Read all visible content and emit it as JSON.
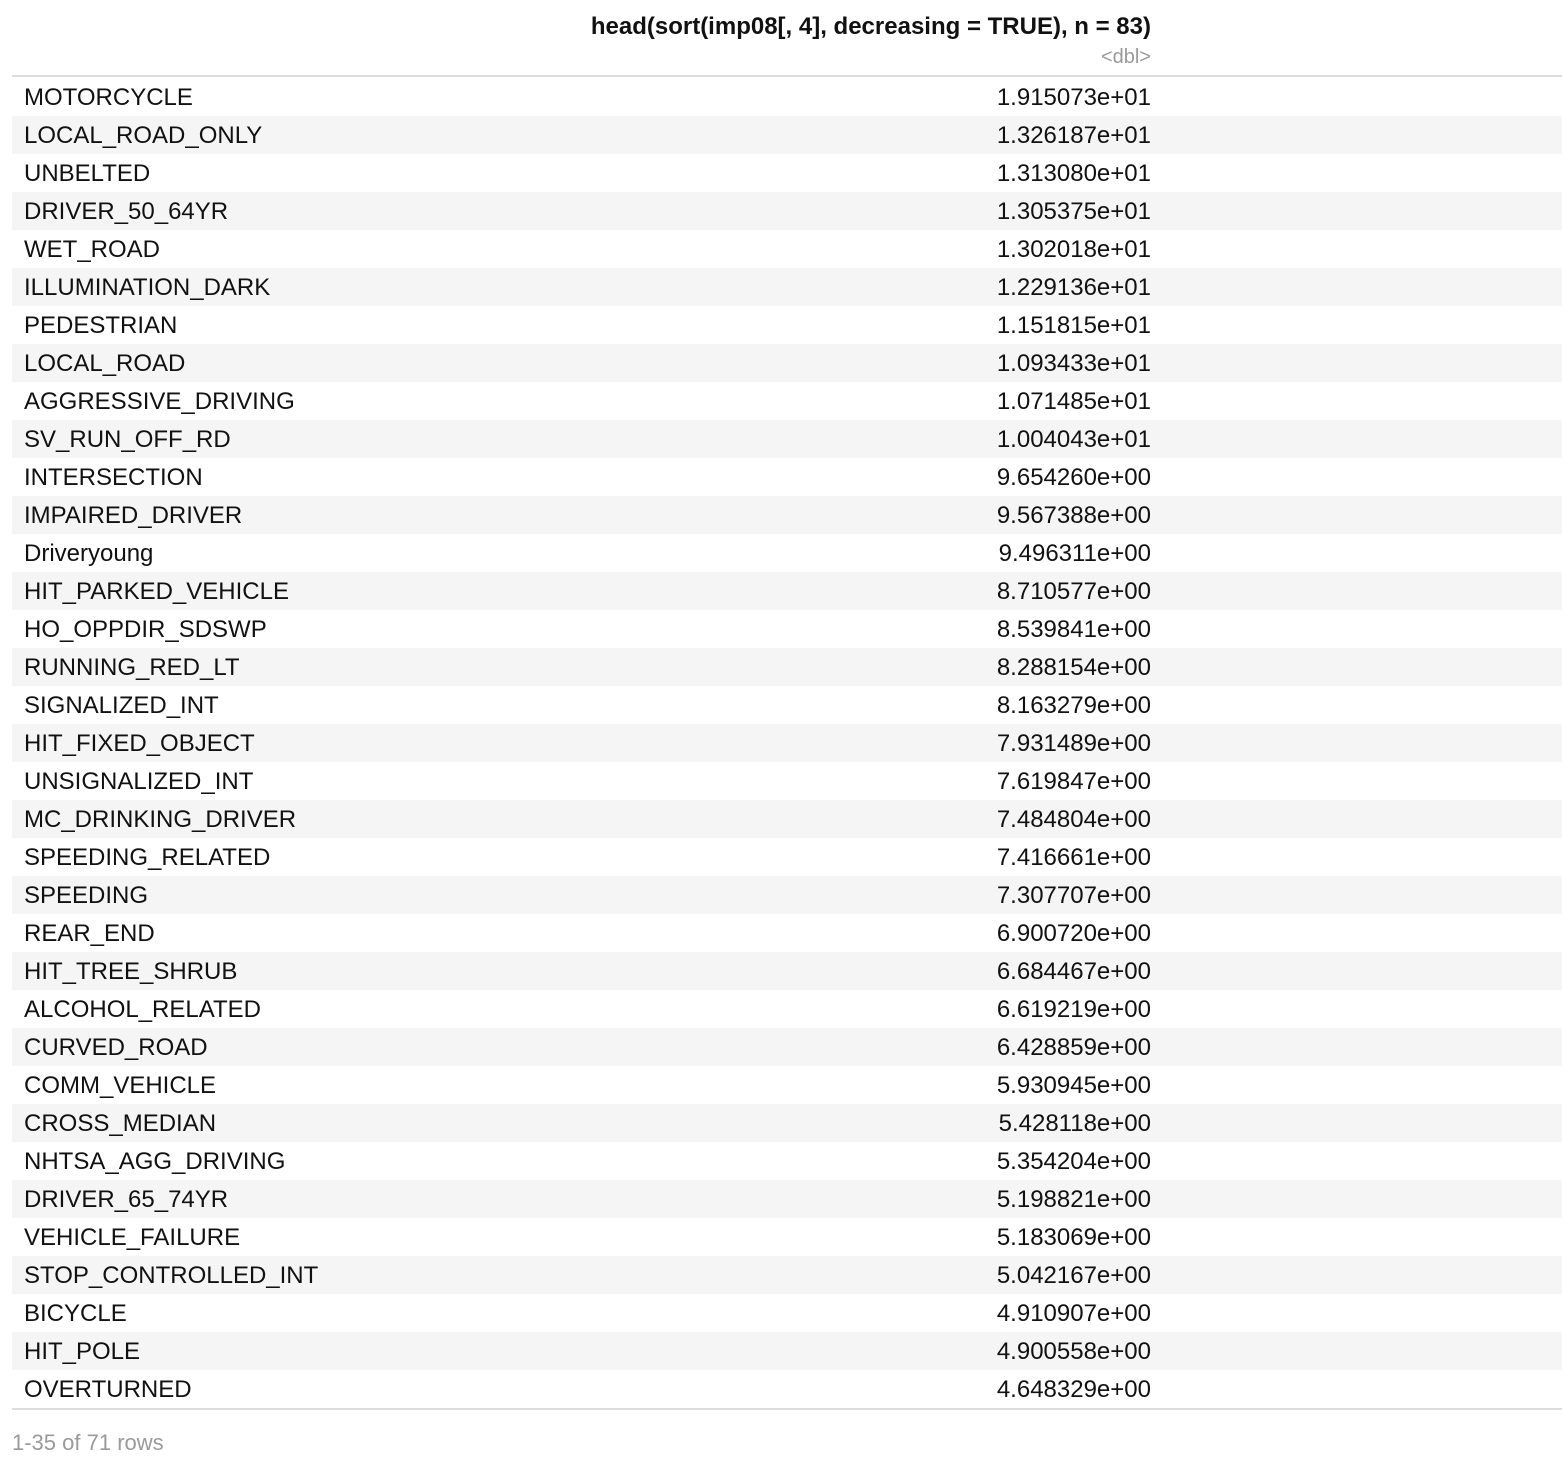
{
  "table": {
    "column_title": "head(sort(imp08[, 4], decreasing = TRUE), n = 83)",
    "column_type": "<dbl>",
    "rows": [
      {
        "name": "MOTORCYCLE",
        "value": "1.915073e+01"
      },
      {
        "name": "LOCAL_ROAD_ONLY",
        "value": "1.326187e+01"
      },
      {
        "name": "UNBELTED",
        "value": "1.313080e+01"
      },
      {
        "name": "DRIVER_50_64YR",
        "value": "1.305375e+01"
      },
      {
        "name": "WET_ROAD",
        "value": "1.302018e+01"
      },
      {
        "name": "ILLUMINATION_DARK",
        "value": "1.229136e+01"
      },
      {
        "name": "PEDESTRIAN",
        "value": "1.151815e+01"
      },
      {
        "name": "LOCAL_ROAD",
        "value": "1.093433e+01"
      },
      {
        "name": "AGGRESSIVE_DRIVING",
        "value": "1.071485e+01"
      },
      {
        "name": "SV_RUN_OFF_RD",
        "value": "1.004043e+01"
      },
      {
        "name": "INTERSECTION",
        "value": "9.654260e+00"
      },
      {
        "name": "IMPAIRED_DRIVER",
        "value": "9.567388e+00"
      },
      {
        "name": "Driveryoung",
        "value": "9.496311e+00"
      },
      {
        "name": "HIT_PARKED_VEHICLE",
        "value": "8.710577e+00"
      },
      {
        "name": "HO_OPPDIR_SDSWP",
        "value": "8.539841e+00"
      },
      {
        "name": "RUNNING_RED_LT",
        "value": "8.288154e+00"
      },
      {
        "name": "SIGNALIZED_INT",
        "value": "8.163279e+00"
      },
      {
        "name": "HIT_FIXED_OBJECT",
        "value": "7.931489e+00"
      },
      {
        "name": "UNSIGNALIZED_INT",
        "value": "7.619847e+00"
      },
      {
        "name": "MC_DRINKING_DRIVER",
        "value": "7.484804e+00"
      },
      {
        "name": "SPEEDING_RELATED",
        "value": "7.416661e+00"
      },
      {
        "name": "SPEEDING",
        "value": "7.307707e+00"
      },
      {
        "name": "REAR_END",
        "value": "6.900720e+00"
      },
      {
        "name": "HIT_TREE_SHRUB",
        "value": "6.684467e+00"
      },
      {
        "name": "ALCOHOL_RELATED",
        "value": "6.619219e+00"
      },
      {
        "name": "CURVED_ROAD",
        "value": "6.428859e+00"
      },
      {
        "name": "COMM_VEHICLE",
        "value": "5.930945e+00"
      },
      {
        "name": "CROSS_MEDIAN",
        "value": "5.428118e+00"
      },
      {
        "name": "NHTSA_AGG_DRIVING",
        "value": "5.354204e+00"
      },
      {
        "name": "DRIVER_65_74YR",
        "value": "5.198821e+00"
      },
      {
        "name": "VEHICLE_FAILURE",
        "value": "5.183069e+00"
      },
      {
        "name": "STOP_CONTROLLED_INT",
        "value": "5.042167e+00"
      },
      {
        "name": "BICYCLE",
        "value": "4.910907e+00"
      },
      {
        "name": "HIT_POLE",
        "value": "4.900558e+00"
      },
      {
        "name": "OVERTURNED",
        "value": "4.648329e+00"
      }
    ]
  },
  "footer": {
    "row_count": "1-35 of 71 rows"
  },
  "colors": {
    "text": "#111111",
    "muted": "#9a9a9a",
    "stripe": "#f5f5f5",
    "rule": "#dcdcdc"
  }
}
